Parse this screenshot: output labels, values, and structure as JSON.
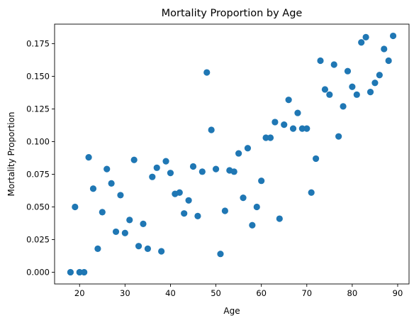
{
  "chart_data": {
    "type": "scatter",
    "title": "Mortality Proportion by Age",
    "xlabel": "Age",
    "ylabel": "Mortality Proportion",
    "xlim": [
      14.5,
      92.5
    ],
    "ylim": [
      -0.009,
      0.19
    ],
    "xticks": [
      20,
      30,
      40,
      50,
      60,
      70,
      80,
      90
    ],
    "xtick_labels": [
      "20",
      "30",
      "40",
      "50",
      "60",
      "70",
      "80",
      "90"
    ],
    "yticks": [
      0.0,
      0.025,
      0.05,
      0.075,
      0.1,
      0.125,
      0.15,
      0.175
    ],
    "ytick_labels": [
      "0.000",
      "0.025",
      "0.050",
      "0.075",
      "0.100",
      "0.125",
      "0.150",
      "0.175"
    ],
    "grid": false,
    "marker_color": "#1f77b4",
    "points": [
      {
        "x": 18,
        "y": 0.0
      },
      {
        "x": 19,
        "y": 0.05
      },
      {
        "x": 20,
        "y": 0.0
      },
      {
        "x": 21,
        "y": 0.0
      },
      {
        "x": 22,
        "y": 0.088
      },
      {
        "x": 23,
        "y": 0.064
      },
      {
        "x": 24,
        "y": 0.018
      },
      {
        "x": 25,
        "y": 0.046
      },
      {
        "x": 26,
        "y": 0.079
      },
      {
        "x": 27,
        "y": 0.068
      },
      {
        "x": 28,
        "y": 0.031
      },
      {
        "x": 29,
        "y": 0.059
      },
      {
        "x": 30,
        "y": 0.03
      },
      {
        "x": 31,
        "y": 0.04
      },
      {
        "x": 32,
        "y": 0.086
      },
      {
        "x": 33,
        "y": 0.02
      },
      {
        "x": 34,
        "y": 0.037
      },
      {
        "x": 35,
        "y": 0.018
      },
      {
        "x": 36,
        "y": 0.073
      },
      {
        "x": 37,
        "y": 0.08
      },
      {
        "x": 38,
        "y": 0.016
      },
      {
        "x": 39,
        "y": 0.085
      },
      {
        "x": 40,
        "y": 0.076
      },
      {
        "x": 41,
        "y": 0.06
      },
      {
        "x": 42,
        "y": 0.061
      },
      {
        "x": 43,
        "y": 0.045
      },
      {
        "x": 44,
        "y": 0.055
      },
      {
        "x": 45,
        "y": 0.081
      },
      {
        "x": 46,
        "y": 0.043
      },
      {
        "x": 47,
        "y": 0.077
      },
      {
        "x": 48,
        "y": 0.153
      },
      {
        "x": 49,
        "y": 0.109
      },
      {
        "x": 50,
        "y": 0.079
      },
      {
        "x": 51,
        "y": 0.014
      },
      {
        "x": 52,
        "y": 0.047
      },
      {
        "x": 53,
        "y": 0.078
      },
      {
        "x": 54,
        "y": 0.077
      },
      {
        "x": 55,
        "y": 0.091
      },
      {
        "x": 56,
        "y": 0.057
      },
      {
        "x": 57,
        "y": 0.095
      },
      {
        "x": 58,
        "y": 0.036
      },
      {
        "x": 59,
        "y": 0.05
      },
      {
        "x": 60,
        "y": 0.07
      },
      {
        "x": 61,
        "y": 0.103
      },
      {
        "x": 62,
        "y": 0.103
      },
      {
        "x": 63,
        "y": 0.115
      },
      {
        "x": 64,
        "y": 0.041
      },
      {
        "x": 65,
        "y": 0.113
      },
      {
        "x": 66,
        "y": 0.132
      },
      {
        "x": 67,
        "y": 0.11
      },
      {
        "x": 68,
        "y": 0.122
      },
      {
        "x": 69,
        "y": 0.11
      },
      {
        "x": 70,
        "y": 0.11
      },
      {
        "x": 71,
        "y": 0.061
      },
      {
        "x": 72,
        "y": 0.087
      },
      {
        "x": 73,
        "y": 0.162
      },
      {
        "x": 74,
        "y": 0.14
      },
      {
        "x": 75,
        "y": 0.136
      },
      {
        "x": 76,
        "y": 0.159
      },
      {
        "x": 77,
        "y": 0.104
      },
      {
        "x": 78,
        "y": 0.127
      },
      {
        "x": 79,
        "y": 0.154
      },
      {
        "x": 80,
        "y": 0.142
      },
      {
        "x": 81,
        "y": 0.136
      },
      {
        "x": 82,
        "y": 0.176
      },
      {
        "x": 83,
        "y": 0.18
      },
      {
        "x": 84,
        "y": 0.138
      },
      {
        "x": 85,
        "y": 0.145
      },
      {
        "x": 86,
        "y": 0.151
      },
      {
        "x": 87,
        "y": 0.171
      },
      {
        "x": 88,
        "y": 0.162
      },
      {
        "x": 89,
        "y": 0.181
      }
    ]
  }
}
